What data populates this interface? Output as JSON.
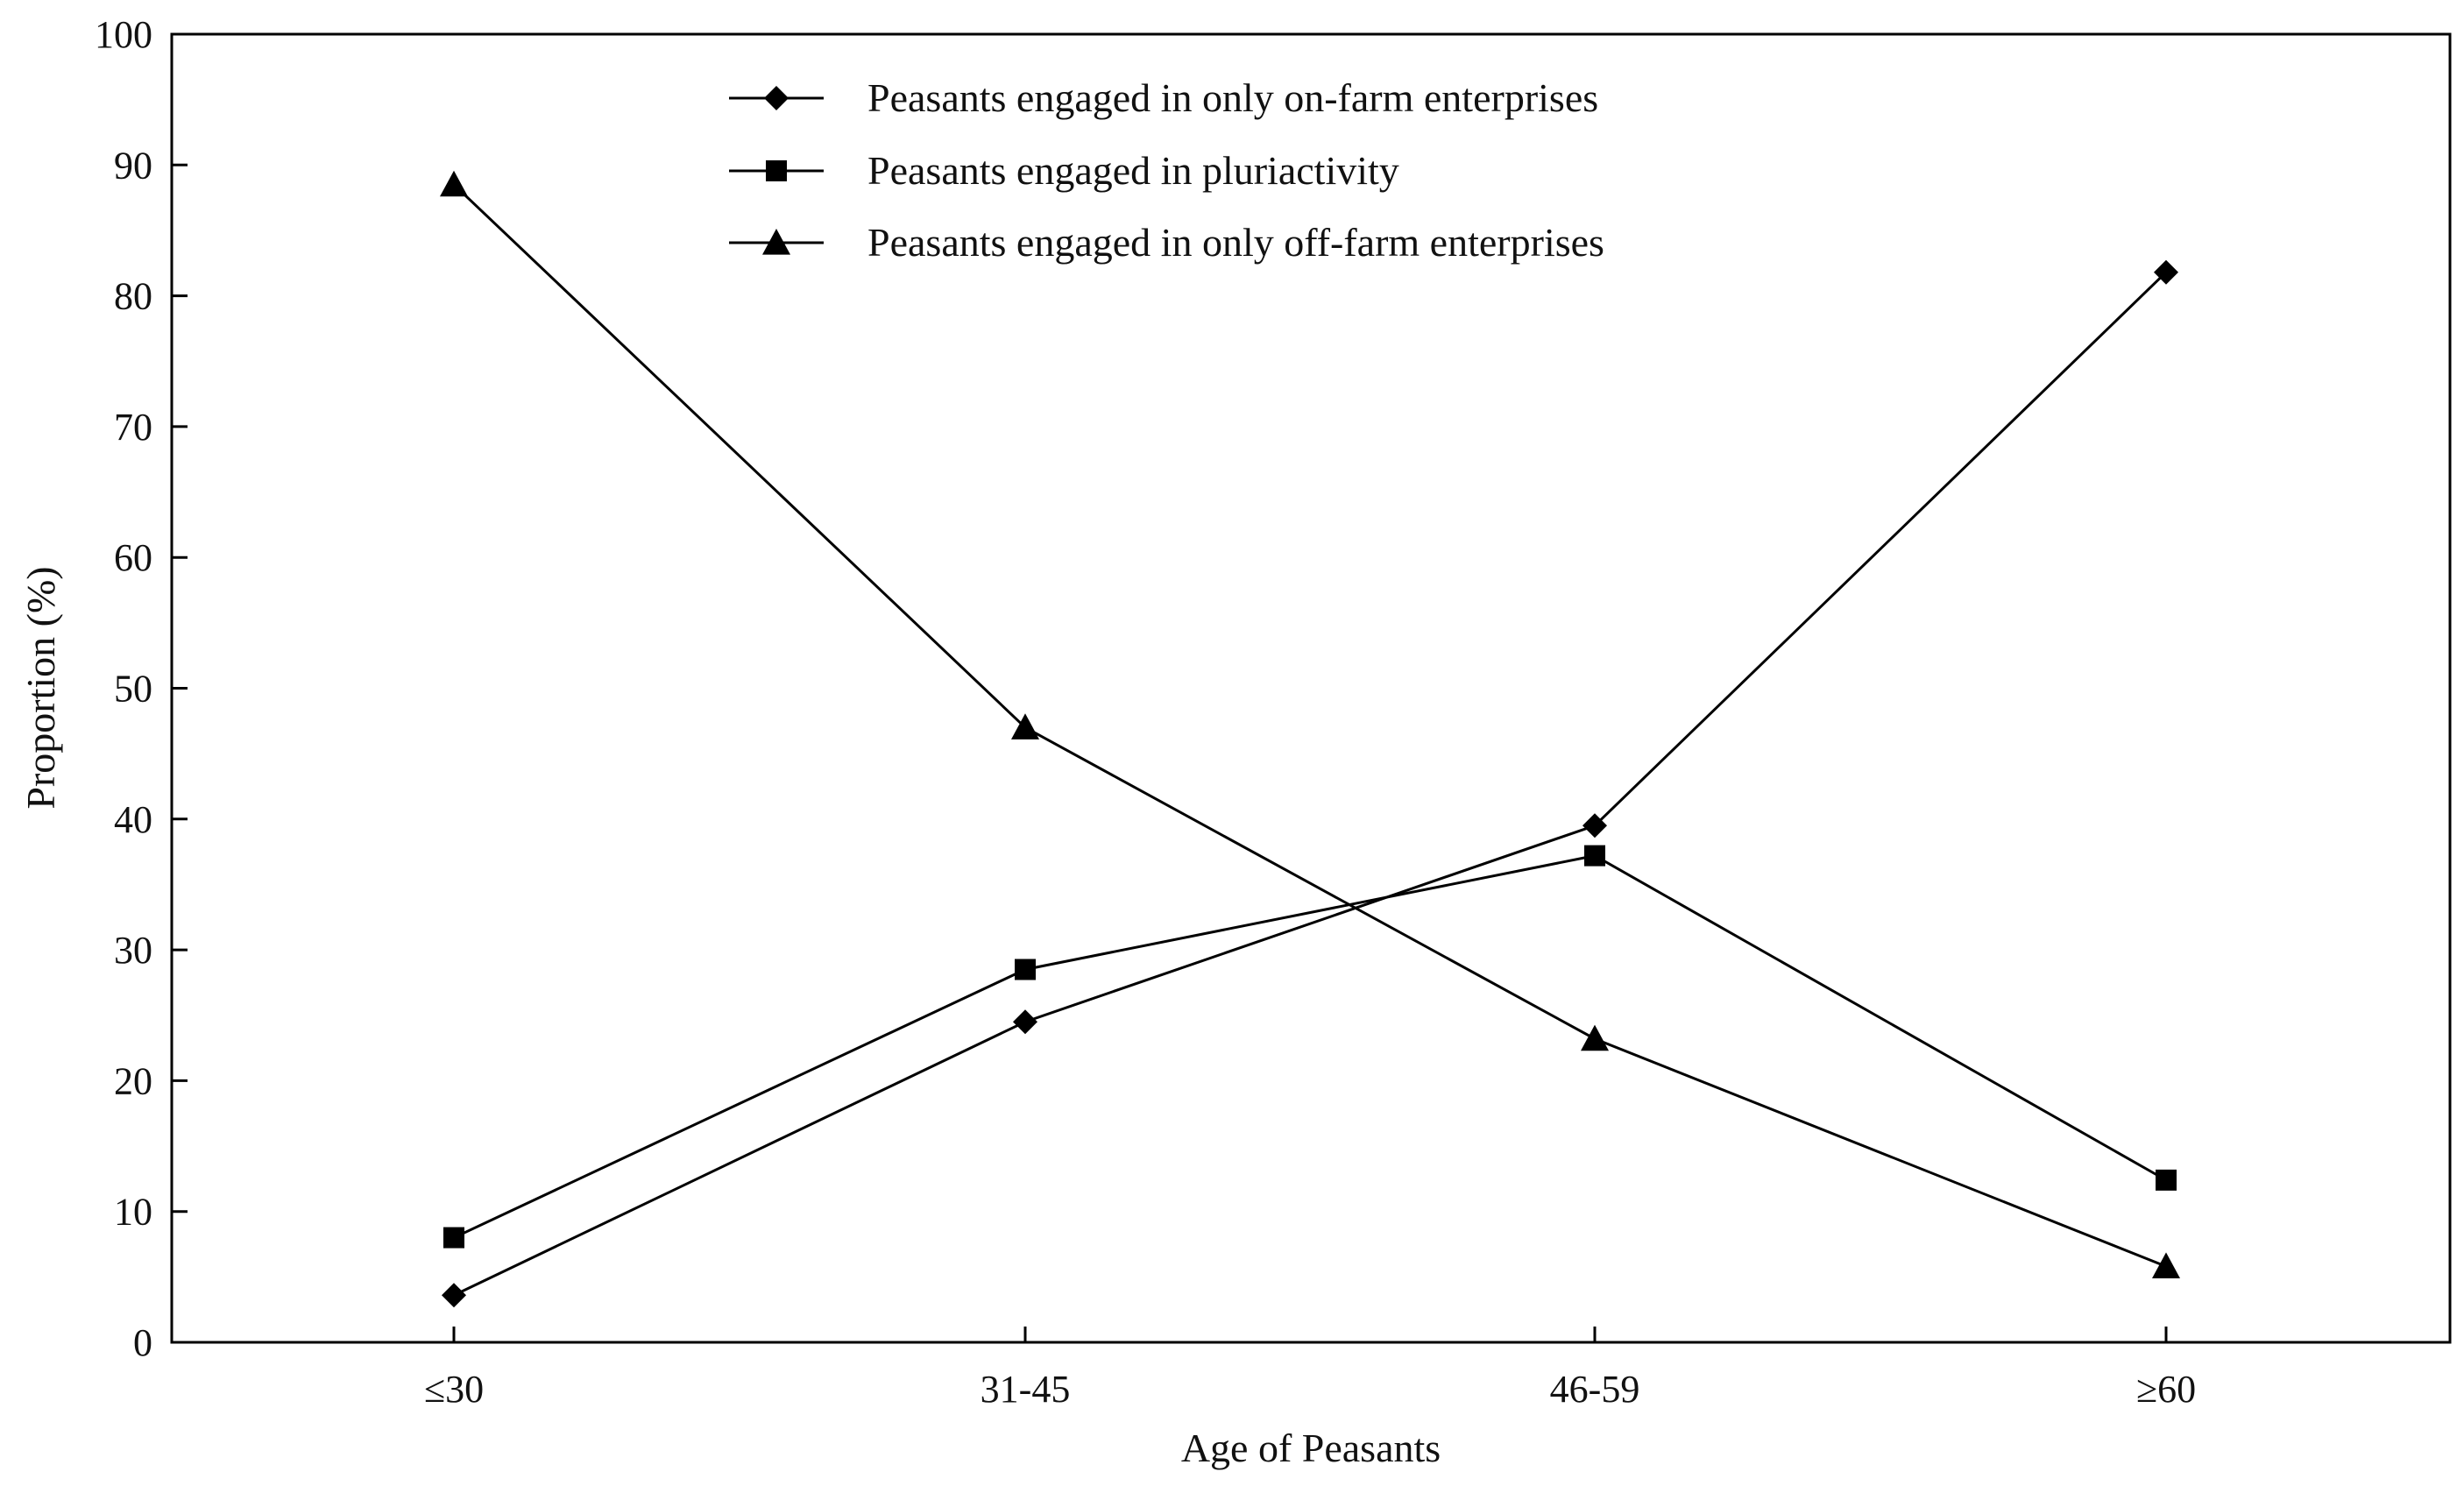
{
  "chart_data": {
    "type": "line",
    "title": "",
    "xlabel": "Age of Peasants",
    "ylabel": "Proportion (%)",
    "categories": [
      "≤30",
      "31-45",
      "46-59",
      "≥60"
    ],
    "yticks": [
      "0",
      "10",
      "20",
      "30",
      "40",
      "50",
      "60",
      "70",
      "80",
      "90",
      "100"
    ],
    "ylim": [
      0,
      100
    ],
    "grid": false,
    "legend_position": "top-center",
    "series": [
      {
        "name": "Peasants engaged in only on-farm enterprises",
        "marker": "diamond",
        "values": [
          3.6,
          24.5,
          39.5,
          81.8
        ]
      },
      {
        "name": "Peasants engaged in pluriactivity",
        "marker": "square",
        "values": [
          8.0,
          28.5,
          37.2,
          12.4
        ]
      },
      {
        "name": "Peasants engaged in only off-farm enterprises",
        "marker": "triangle",
        "values": [
          88.5,
          47.0,
          23.2,
          5.8
        ]
      }
    ],
    "colors": {
      "line": "#000000",
      "marker": "#000000"
    }
  }
}
